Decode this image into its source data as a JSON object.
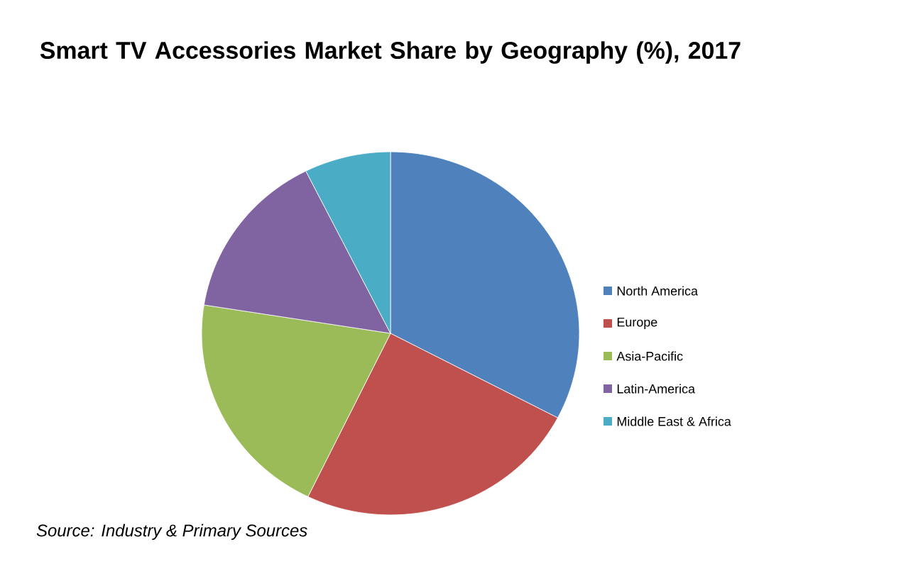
{
  "chart_data": {
    "type": "pie",
    "title": "Smart TV Accessories Market Share by Geography (%), 2017",
    "categories": [
      "North America",
      "Europe",
      "Asia-Pacific",
      "Latin-America",
      "Middle East & Africa"
    ],
    "values": [
      32.7,
      24.5,
      20.3,
      15.1,
      7.4
    ],
    "colors": [
      "#4f81bd",
      "#c0504d",
      "#9bbb59",
      "#8064a2",
      "#4bacc6"
    ],
    "legend": "right",
    "annotations": [
      "Source: Industry & Primary Sources"
    ]
  }
}
